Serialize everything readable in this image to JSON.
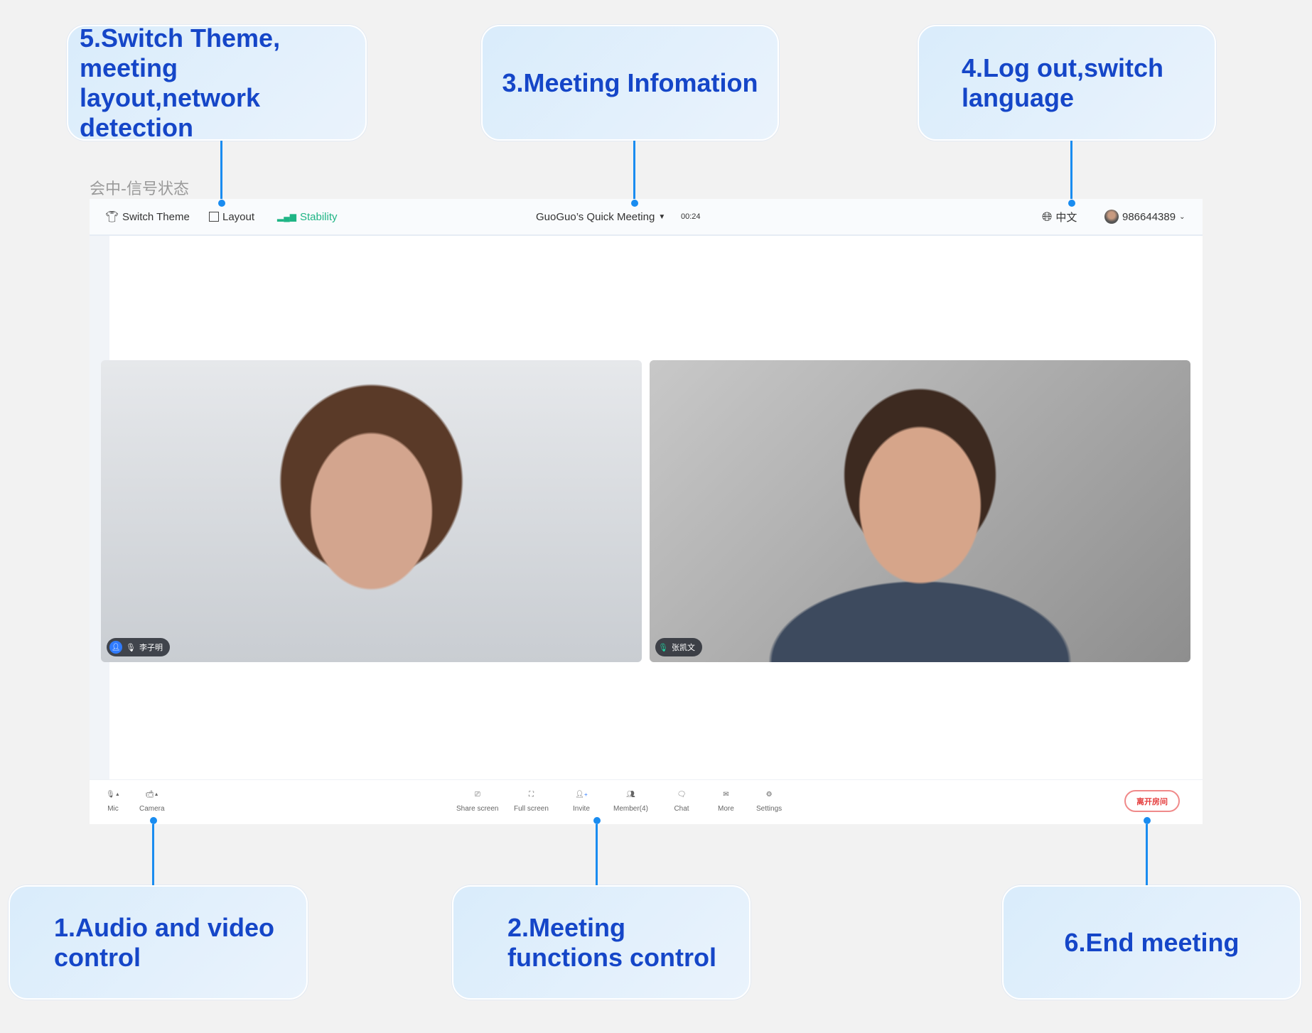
{
  "annotation_label": "会中-信号状态",
  "callouts": {
    "c5": "5.Switch Theme, meeting layout,network detection",
    "c3": "3.Meeting Infomation",
    "c4": "4.Log out,switch language",
    "c1": "1.Audio and video control",
    "c2": "2.Meeting functions control",
    "c6": "6.End meeting"
  },
  "topbar": {
    "switch_theme": "Switch Theme",
    "layout": "Layout",
    "stability": "Stability",
    "meeting_title": "GuoGuo’s Quick Meeting",
    "timer": "00:24",
    "language": "中文",
    "user_id": "986644389"
  },
  "videos": [
    {
      "name": "李子明"
    },
    {
      "name": "张凯文"
    }
  ],
  "toolbar": {
    "mic": "Mic",
    "camera": "Camera",
    "share_screen": "Share screen",
    "full_screen": "Full screen",
    "invite": "Invite",
    "members": "Member(4)",
    "chat": "Chat",
    "more": "More",
    "settings": "Settings",
    "leave": "离开房间"
  },
  "colors": {
    "accent": "#1a8cf0",
    "callout_text": "#1546c8",
    "stability": "#1fb585",
    "leave": "#e53d3d"
  }
}
